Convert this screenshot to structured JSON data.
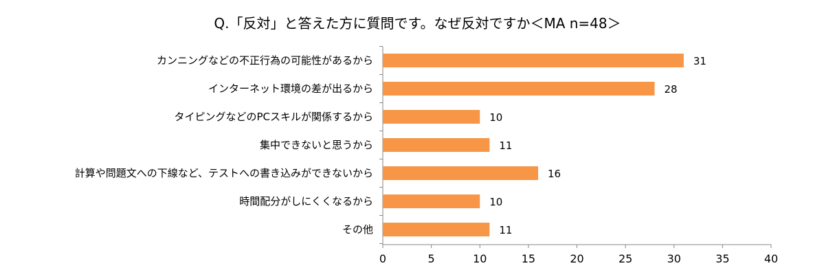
{
  "chart_data": {
    "type": "bar",
    "orientation": "horizontal",
    "title": "Q.「反対」と答えた方に質問です。なぜ反対ですか＜MA n=48＞",
    "categories": [
      "カンニングなどの不正行為の可能性があるから",
      "インターネット環境の差が出るから",
      "タイピングなどのPCスキルが関係するから",
      "集中できないと思うから",
      "計算や問題文への下線など、テストへの書き込みができないから",
      "時間配分がしにくくなるから",
      "その他"
    ],
    "values": [
      31,
      28,
      10,
      11,
      16,
      10,
      11
    ],
    "xlim": [
      0,
      40
    ],
    "xticks": [
      0,
      5,
      10,
      15,
      20,
      25,
      30,
      35,
      40
    ],
    "grid": false,
    "bar_color": "#F79646",
    "data_labels": true
  }
}
